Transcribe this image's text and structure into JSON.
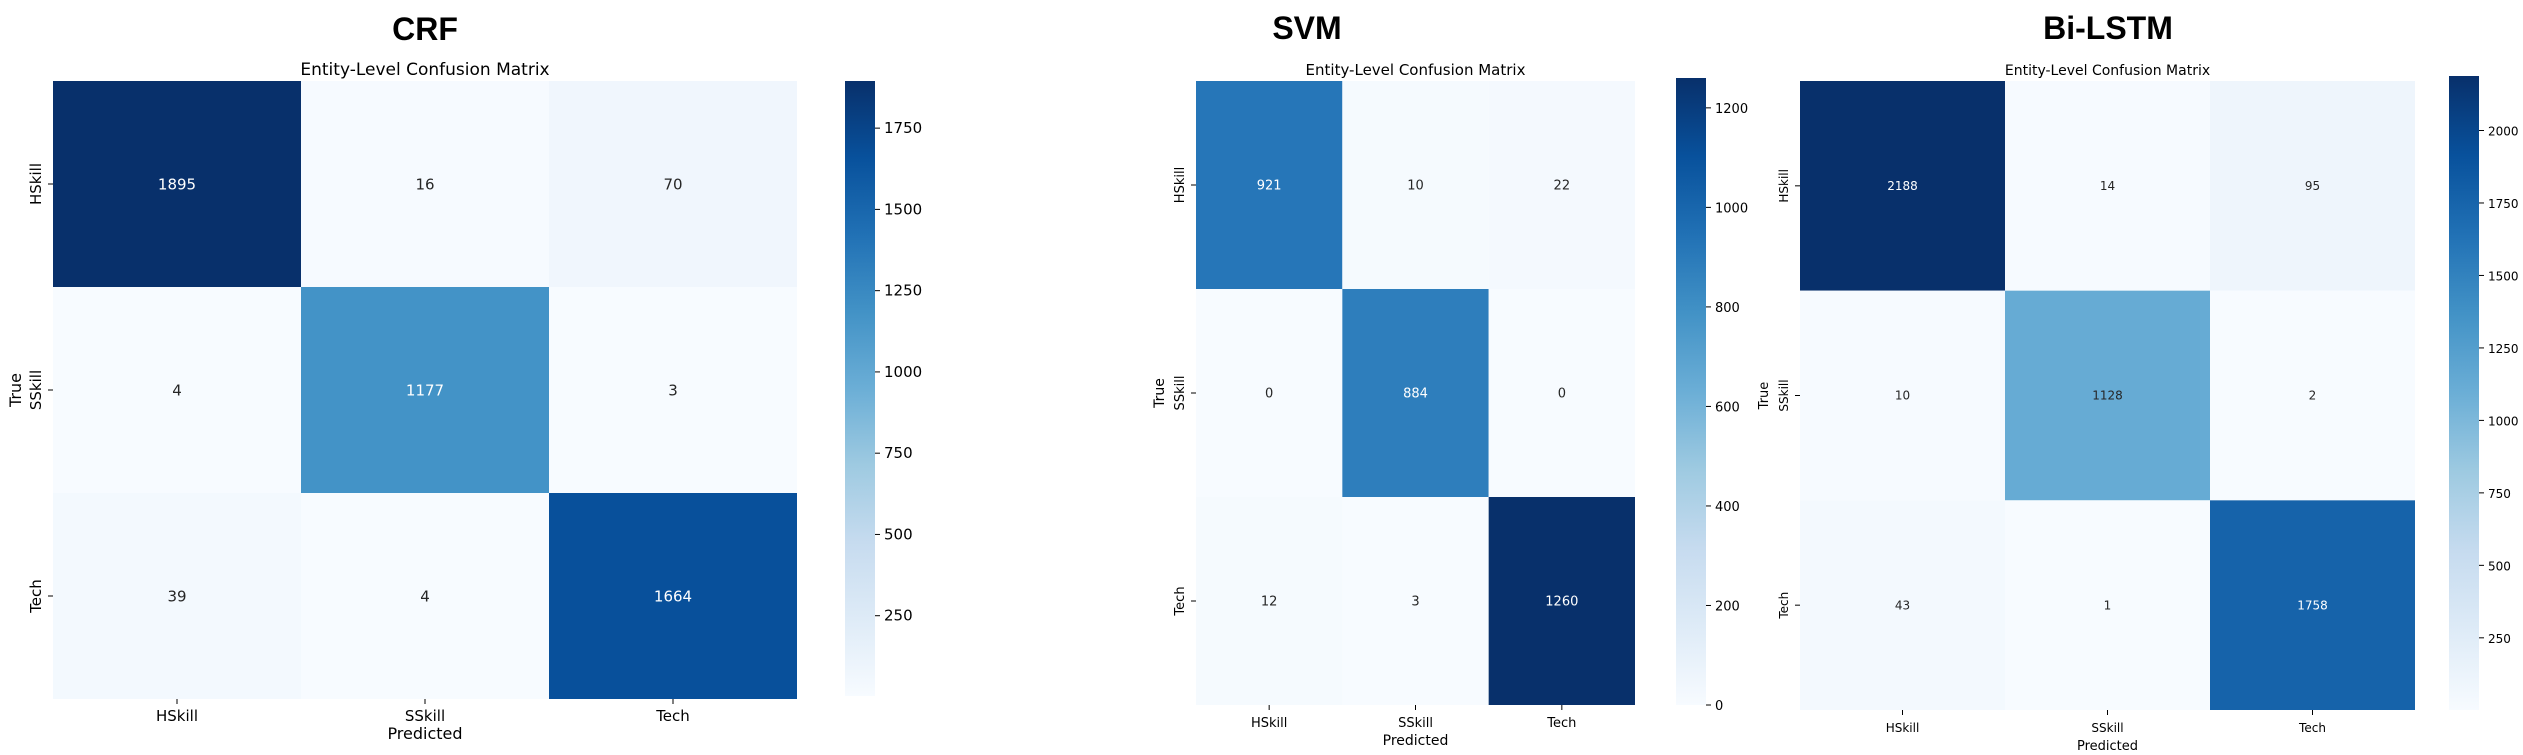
{
  "chart_data": [
    {
      "type": "heatmap",
      "panel_title": "CRF",
      "title": "Entity-Level Confusion Matrix",
      "xlabel": "Predicted",
      "ylabel": "True",
      "x_categories": [
        "HSkill",
        "SSkill",
        "Tech"
      ],
      "y_categories": [
        "HSkill",
        "SSkill",
        "Tech"
      ],
      "values": [
        [
          1895,
          16,
          70
        ],
        [
          4,
          1177,
          3
        ],
        [
          39,
          4,
          1664
        ]
      ],
      "colormap": "Blues",
      "colorbar_range": [
        3,
        1895
      ],
      "colorbar_ticks": [
        250,
        500,
        750,
        1000,
        1250,
        1500,
        1750
      ]
    },
    {
      "type": "heatmap",
      "panel_title": "SVM",
      "title": "Entity-Level Confusion Matrix",
      "xlabel": "Predicted",
      "ylabel": "True",
      "x_categories": [
        "HSkill",
        "SSkill",
        "Tech"
      ],
      "y_categories": [
        "HSkill",
        "SSkill",
        "Tech"
      ],
      "values": [
        [
          921,
          10,
          22
        ],
        [
          0,
          884,
          0
        ],
        [
          12,
          3,
          1260
        ]
      ],
      "colormap": "Blues",
      "colorbar_range": [
        0,
        1260
      ],
      "colorbar_ticks": [
        0,
        200,
        400,
        600,
        800,
        1000,
        1200
      ]
    },
    {
      "type": "heatmap",
      "panel_title": "Bi-LSTM",
      "title": "Entity-Level Confusion Matrix",
      "xlabel": "Predicted",
      "ylabel": "True",
      "x_categories": [
        "HSkill",
        "SSkill",
        "Tech"
      ],
      "y_categories": [
        "HSkill",
        "SSkill",
        "Tech"
      ],
      "values": [
        [
          2188,
          14,
          95
        ],
        [
          10,
          1128,
          2
        ],
        [
          43,
          1,
          1758
        ]
      ],
      "colormap": "Blues",
      "colorbar_range": [
        1,
        2188
      ],
      "colorbar_ticks": [
        250,
        500,
        750,
        1000,
        1250,
        1500,
        1750,
        2000
      ]
    }
  ]
}
